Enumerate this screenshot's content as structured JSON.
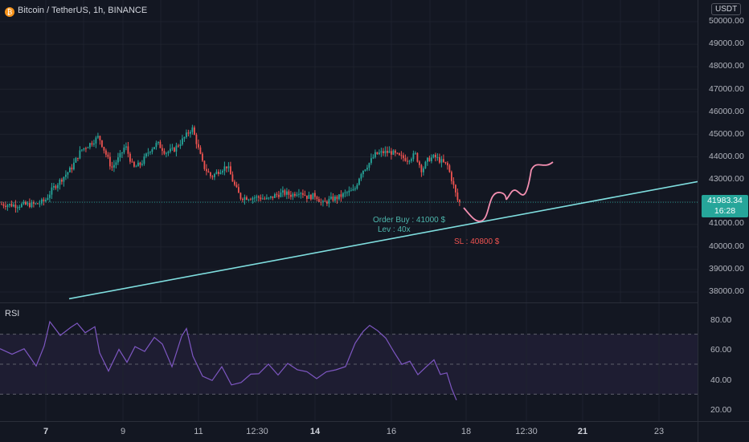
{
  "symbol": {
    "title": "Bitcoin / TetherUS, 1h, BINANCE",
    "currency": "USDT"
  },
  "price_axis": {
    "labels": [
      "50000.00",
      "49000.00",
      "48000.00",
      "47000.00",
      "46000.00",
      "45000.00",
      "44000.00",
      "43000.00",
      "42000.00",
      "41000.00",
      "40000.00",
      "39000.00",
      "38000.00"
    ],
    "last_price": "41983.34",
    "countdown": "16:28"
  },
  "rsi": {
    "title": "RSI",
    "labels": [
      "80.00",
      "60.00",
      "40.00",
      "20.00"
    ]
  },
  "time_axis": {
    "labels": [
      "7",
      "9",
      "11",
      "12:30",
      "14",
      "16",
      "18",
      "12:30",
      "21",
      "23"
    ]
  },
  "annotations": {
    "order_buy": "Order Buy : 41000 $",
    "leverage": "Lev : 40x",
    "stop_loss": "SL : 40800 $"
  },
  "colors": {
    "background": "#131722",
    "up_candle": "#26a69a",
    "down_candle": "#ef5350",
    "trendline": "#7fdedf",
    "projection": "#f48fb1",
    "rsi_line": "#7e57c2",
    "rsi_band": "#7e57c2"
  },
  "chart_data": {
    "type": "candlestick",
    "price_range": [
      37600,
      50300
    ],
    "trendline": {
      "start": 37700,
      "end": 42900
    },
    "last_price": 41983.34,
    "rsi_range": [
      15,
      88
    ],
    "rsi_bands": [
      70,
      50,
      30
    ]
  }
}
